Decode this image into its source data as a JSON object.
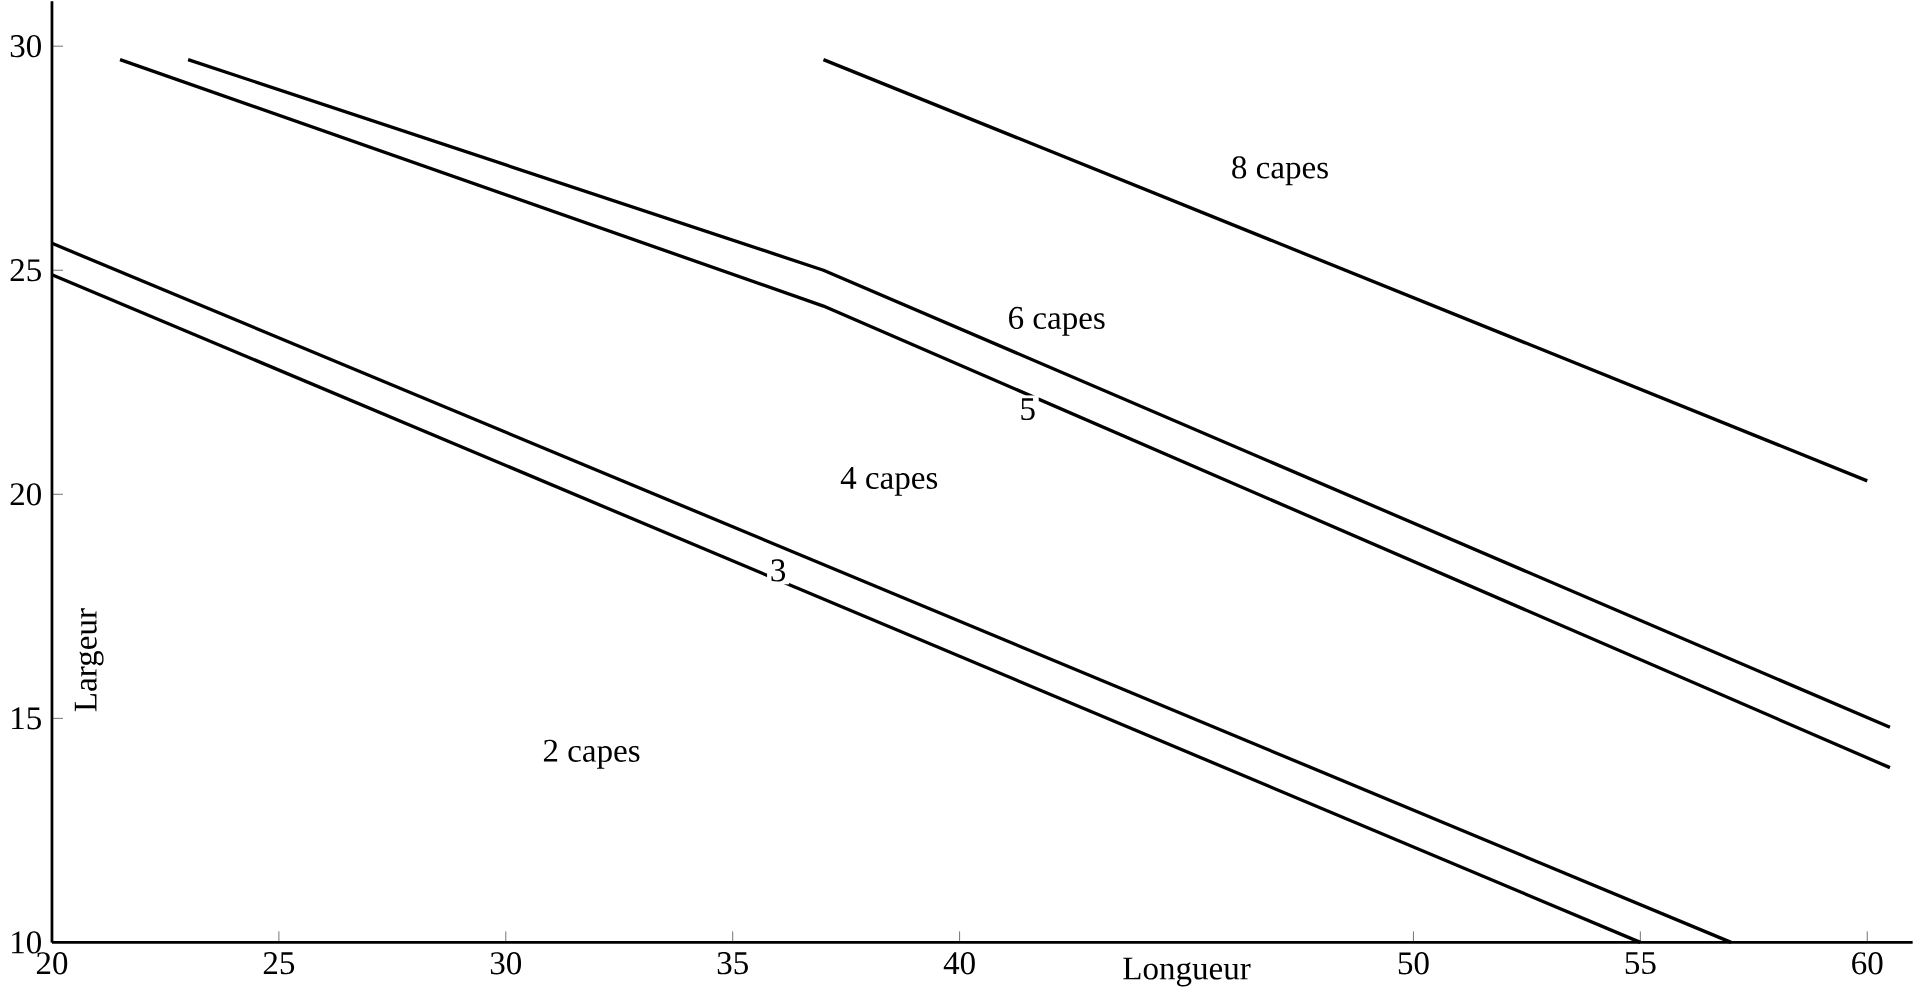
{
  "chart_data": {
    "type": "line",
    "xlabel": "Longueur",
    "ylabel": "Largeur",
    "xlim": [
      20,
      61
    ],
    "ylim": [
      10,
      31
    ],
    "xticks": [
      20,
      25,
      30,
      35,
      40,
      50,
      55,
      60
    ],
    "yticks": [
      10,
      15,
      20,
      25,
      30
    ],
    "grid": false,
    "marker": "none",
    "line_style": "solid",
    "series": [
      {
        "color": "#000000",
        "x": [
          20,
          55
        ],
        "values": [
          24.9,
          10
        ]
      },
      {
        "color": "#000000",
        "x": [
          20,
          57
        ],
        "values": [
          25.6,
          10
        ]
      },
      {
        "color": "#000000",
        "x": [
          21.5,
          37,
          60.5
        ],
        "values": [
          29.7,
          24.2,
          13.9
        ]
      },
      {
        "color": "#000000",
        "x": [
          23,
          37,
          60.5
        ],
        "values": [
          29.7,
          25,
          14.8
        ]
      },
      {
        "color": "#000000",
        "x": [
          37,
          60
        ],
        "values": [
          29.7,
          20.3
        ]
      }
    ],
    "annotations": [
      "8 capes",
      "6 capes",
      {
        "text": "5",
        "x": 41.5,
        "y": 21.9
      },
      "4 capes",
      {
        "text": "3",
        "x": 36,
        "y": 18.3
      },
      "2 capes"
    ]
  }
}
